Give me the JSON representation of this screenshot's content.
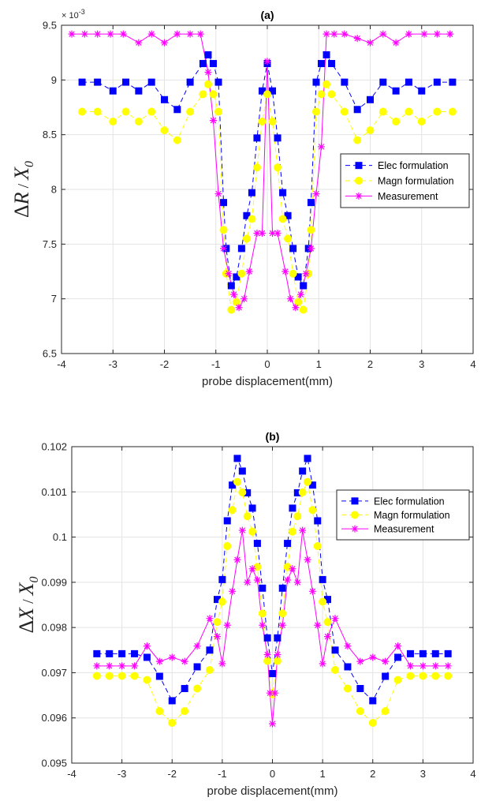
{
  "chart_data": [
    {
      "type": "line",
      "title": "(a)",
      "xlabel": "probe displacement(mm)",
      "ylabel": "ΔR / X0",
      "ylabel_parts": {
        "delta": "Δ",
        "var": "R",
        "sep": " / ",
        "x": "X",
        "sub": "0"
      },
      "y_exponent_label": "× 10",
      "y_exponent": "-3",
      "xlim": [
        -4,
        4
      ],
      "ylim": [
        6.5,
        9.5
      ],
      "xticks": [
        -4,
        -3,
        -2,
        -1,
        0,
        1,
        2,
        3,
        4
      ],
      "yticks": [
        6.5,
        7,
        7.5,
        8,
        8.5,
        9,
        9.5
      ],
      "ytick_labels": [
        "6.5",
        "7",
        "7.5",
        "8",
        "8.5",
        "9",
        "9.5"
      ],
      "grid": true,
      "legend_position": "right",
      "series": [
        {
          "name": "Elec formulation",
          "color": "#0000ff",
          "marker": "square",
          "line": "dashed",
          "x": [
            -3.6,
            -3.3,
            -3.0,
            -2.75,
            -2.5,
            -2.25,
            -2.0,
            -1.75,
            -1.5,
            -1.25,
            -1.15,
            -1.05,
            -0.95,
            -0.85,
            -0.8,
            -0.7,
            -0.6,
            -0.5,
            -0.4,
            -0.3,
            -0.2,
            -0.1,
            0.0,
            0.1,
            0.2,
            0.3,
            0.4,
            0.5,
            0.6,
            0.7,
            0.8,
            0.85,
            0.95,
            1.05,
            1.15,
            1.25,
            1.5,
            1.75,
            2.0,
            2.25,
            2.5,
            2.75,
            3.0,
            3.3,
            3.6
          ],
          "y": [
            8.98,
            8.98,
            8.9,
            8.98,
            8.9,
            8.98,
            8.82,
            8.73,
            8.98,
            9.15,
            9.23,
            9.15,
            8.98,
            7.88,
            7.46,
            7.12,
            7.2,
            7.46,
            7.76,
            7.97,
            8.47,
            8.9,
            9.15,
            8.9,
            8.47,
            7.97,
            7.76,
            7.46,
            7.2,
            7.12,
            7.46,
            7.88,
            8.98,
            9.15,
            9.23,
            9.15,
            8.98,
            8.73,
            8.82,
            8.98,
            8.9,
            8.98,
            8.9,
            8.98,
            8.98
          ]
        },
        {
          "name": "Magn formulation",
          "color": "#ffff00",
          "marker": "circle",
          "line": "dashed",
          "x": [
            -3.6,
            -3.3,
            -3.0,
            -2.75,
            -2.5,
            -2.25,
            -2.0,
            -1.75,
            -1.5,
            -1.25,
            -1.15,
            -1.05,
            -0.95,
            -0.85,
            -0.8,
            -0.7,
            -0.6,
            -0.5,
            -0.4,
            -0.3,
            -0.2,
            -0.1,
            0.0,
            0.1,
            0.2,
            0.3,
            0.4,
            0.5,
            0.6,
            0.7,
            0.8,
            0.85,
            0.95,
            1.05,
            1.15,
            1.25,
            1.5,
            1.75,
            2.0,
            2.25,
            2.5,
            2.75,
            3.0,
            3.3,
            3.6
          ],
          "y": [
            8.71,
            8.71,
            8.62,
            8.71,
            8.62,
            8.71,
            8.54,
            8.45,
            8.71,
            8.87,
            8.96,
            8.87,
            8.71,
            7.63,
            7.23,
            6.9,
            6.97,
            7.23,
            7.55,
            7.73,
            8.2,
            8.62,
            8.87,
            8.62,
            8.2,
            7.73,
            7.55,
            7.23,
            6.97,
            6.9,
            7.23,
            7.63,
            8.71,
            8.87,
            8.96,
            8.87,
            8.71,
            8.45,
            8.54,
            8.71,
            8.62,
            8.71,
            8.62,
            8.71,
            8.71
          ]
        },
        {
          "name": "Measurement",
          "color": "#ff00ff",
          "marker": "asterisk",
          "line": "solid",
          "x": [
            -3.8,
            -3.55,
            -3.3,
            -3.05,
            -2.8,
            -2.5,
            -2.25,
            -2.0,
            -1.75,
            -1.5,
            -1.3,
            -1.15,
            -1.05,
            -0.95,
            -0.85,
            -0.75,
            -0.65,
            -0.55,
            -0.45,
            -0.35,
            -0.2,
            -0.1,
            0.0,
            0.1,
            0.2,
            0.35,
            0.45,
            0.55,
            0.65,
            0.75,
            0.85,
            0.95,
            1.05,
            1.15,
            1.3,
            1.5,
            1.75,
            2.0,
            2.25,
            2.5,
            2.75,
            3.05,
            3.3,
            3.55
          ],
          "y": [
            9.42,
            9.42,
            9.42,
            9.42,
            9.42,
            9.34,
            9.42,
            9.34,
            9.42,
            9.42,
            9.42,
            9.07,
            8.63,
            7.96,
            7.46,
            7.23,
            7.04,
            6.92,
            7.0,
            7.25,
            7.6,
            7.6,
            9.17,
            7.6,
            7.6,
            7.25,
            7.0,
            6.92,
            7.04,
            7.23,
            7.46,
            7.96,
            8.39,
            9.42,
            9.42,
            9.42,
            9.38,
            9.34,
            9.42,
            9.34,
            9.42,
            9.42,
            9.42,
            9.42
          ]
        }
      ]
    },
    {
      "type": "line",
      "title": "(b)",
      "xlabel": "probe displacement(mm)",
      "ylabel": "ΔX / X0",
      "ylabel_parts": {
        "delta": "Δ",
        "var": "X",
        "sep": " / ",
        "x": "X",
        "sub": "0"
      },
      "xlim": [
        -4,
        4
      ],
      "ylim": [
        0.095,
        0.102
      ],
      "xticks": [
        -4,
        -3,
        -2,
        -1,
        0,
        1,
        2,
        3,
        4
      ],
      "yticks": [
        0.095,
        0.096,
        0.097,
        0.098,
        0.099,
        0.1,
        0.101,
        0.102
      ],
      "ytick_labels": [
        "0.095",
        "0.096",
        "0.097",
        "0.098",
        "0.099",
        "0.1",
        "0.101",
        "0.102"
      ],
      "grid": true,
      "legend_position": "top-right",
      "series": [
        {
          "name": "Elec formulation",
          "color": "#0000ff",
          "marker": "square",
          "line": "dashed",
          "x": [
            -3.5,
            -3.25,
            -3.0,
            -2.75,
            -2.5,
            -2.25,
            -2.0,
            -1.75,
            -1.5,
            -1.25,
            -1.1,
            -1.0,
            -0.9,
            -0.8,
            -0.7,
            -0.6,
            -0.5,
            -0.4,
            -0.3,
            -0.2,
            -0.1,
            0.0,
            0.1,
            0.2,
            0.3,
            0.4,
            0.5,
            0.6,
            0.7,
            0.8,
            0.9,
            1.0,
            1.1,
            1.25,
            1.5,
            1.75,
            2.0,
            2.25,
            2.5,
            2.75,
            3.0,
            3.25,
            3.5
          ],
          "y": [
            0.09742,
            0.09742,
            0.09742,
            0.09742,
            0.09734,
            0.09692,
            0.09638,
            0.09665,
            0.09713,
            0.0975,
            0.09862,
            0.09906,
            0.10036,
            0.10115,
            0.10174,
            0.10146,
            0.10098,
            0.10064,
            0.09986,
            0.09887,
            0.09777,
            0.09698,
            0.09777,
            0.09887,
            0.09986,
            0.10064,
            0.10098,
            0.10146,
            0.10174,
            0.10115,
            0.10036,
            0.09906,
            0.09862,
            0.0975,
            0.09713,
            0.09665,
            0.09638,
            0.09692,
            0.09734,
            0.09742,
            0.09742,
            0.09742,
            0.09742
          ]
        },
        {
          "name": "Magn formulation",
          "color": "#ffff00",
          "marker": "circle",
          "line": "dashed",
          "x": [
            -3.5,
            -3.25,
            -3.0,
            -2.75,
            -2.5,
            -2.25,
            -2.0,
            -1.75,
            -1.5,
            -1.25,
            -1.1,
            -1.0,
            -0.9,
            -0.8,
            -0.7,
            -0.6,
            -0.5,
            -0.4,
            -0.3,
            -0.2,
            -0.1,
            0.0,
            0.1,
            0.2,
            0.3,
            0.4,
            0.5,
            0.6,
            0.7,
            0.8,
            0.9,
            1.0,
            1.1,
            1.25,
            1.5,
            1.75,
            2.0,
            2.25,
            2.5,
            2.75,
            3.0,
            3.25,
            3.5
          ],
          "y": [
            0.09693,
            0.09693,
            0.09693,
            0.09693,
            0.09684,
            0.09615,
            0.09589,
            0.09615,
            0.09665,
            0.09706,
            0.09812,
            0.09857,
            0.0998,
            0.1006,
            0.10122,
            0.10099,
            0.10046,
            0.10012,
            0.09934,
            0.09831,
            0.09726,
            0.09652,
            0.09726,
            0.09831,
            0.09934,
            0.10012,
            0.10046,
            0.10099,
            0.10122,
            0.1006,
            0.0998,
            0.09857,
            0.09812,
            0.09706,
            0.09665,
            0.09615,
            0.09589,
            0.09615,
            0.09684,
            0.09693,
            0.09693,
            0.09693,
            0.09693
          ]
        },
        {
          "name": "Measurement",
          "color": "#ff00ff",
          "marker": "asterisk",
          "line": "solid",
          "x": [
            -3.5,
            -3.25,
            -3.0,
            -2.75,
            -2.5,
            -2.25,
            -2.0,
            -1.75,
            -1.5,
            -1.25,
            -1.1,
            -1.0,
            -0.9,
            -0.8,
            -0.7,
            -0.6,
            -0.5,
            -0.4,
            -0.3,
            -0.2,
            -0.1,
            -0.05,
            0.0,
            0.05,
            0.1,
            0.2,
            0.3,
            0.4,
            0.5,
            0.6,
            0.7,
            0.8,
            0.9,
            1.0,
            1.1,
            1.25,
            1.5,
            1.75,
            2.0,
            2.25,
            2.5,
            2.75,
            3.0,
            3.25,
            3.5
          ],
          "y": [
            0.09715,
            0.09715,
            0.09715,
            0.09715,
            0.09759,
            0.09725,
            0.09734,
            0.09725,
            0.09759,
            0.0982,
            0.0978,
            0.0972,
            0.09805,
            0.0988,
            0.0995,
            0.10015,
            0.099,
            0.0993,
            0.09905,
            0.09805,
            0.0974,
            0.09655,
            0.09587,
            0.09655,
            0.0974,
            0.09805,
            0.09905,
            0.0993,
            0.099,
            0.10015,
            0.0995,
            0.0988,
            0.09805,
            0.0972,
            0.0978,
            0.0982,
            0.09759,
            0.09725,
            0.09734,
            0.09725,
            0.09759,
            0.09715,
            0.09715,
            0.09715,
            0.09715
          ]
        }
      ]
    }
  ]
}
